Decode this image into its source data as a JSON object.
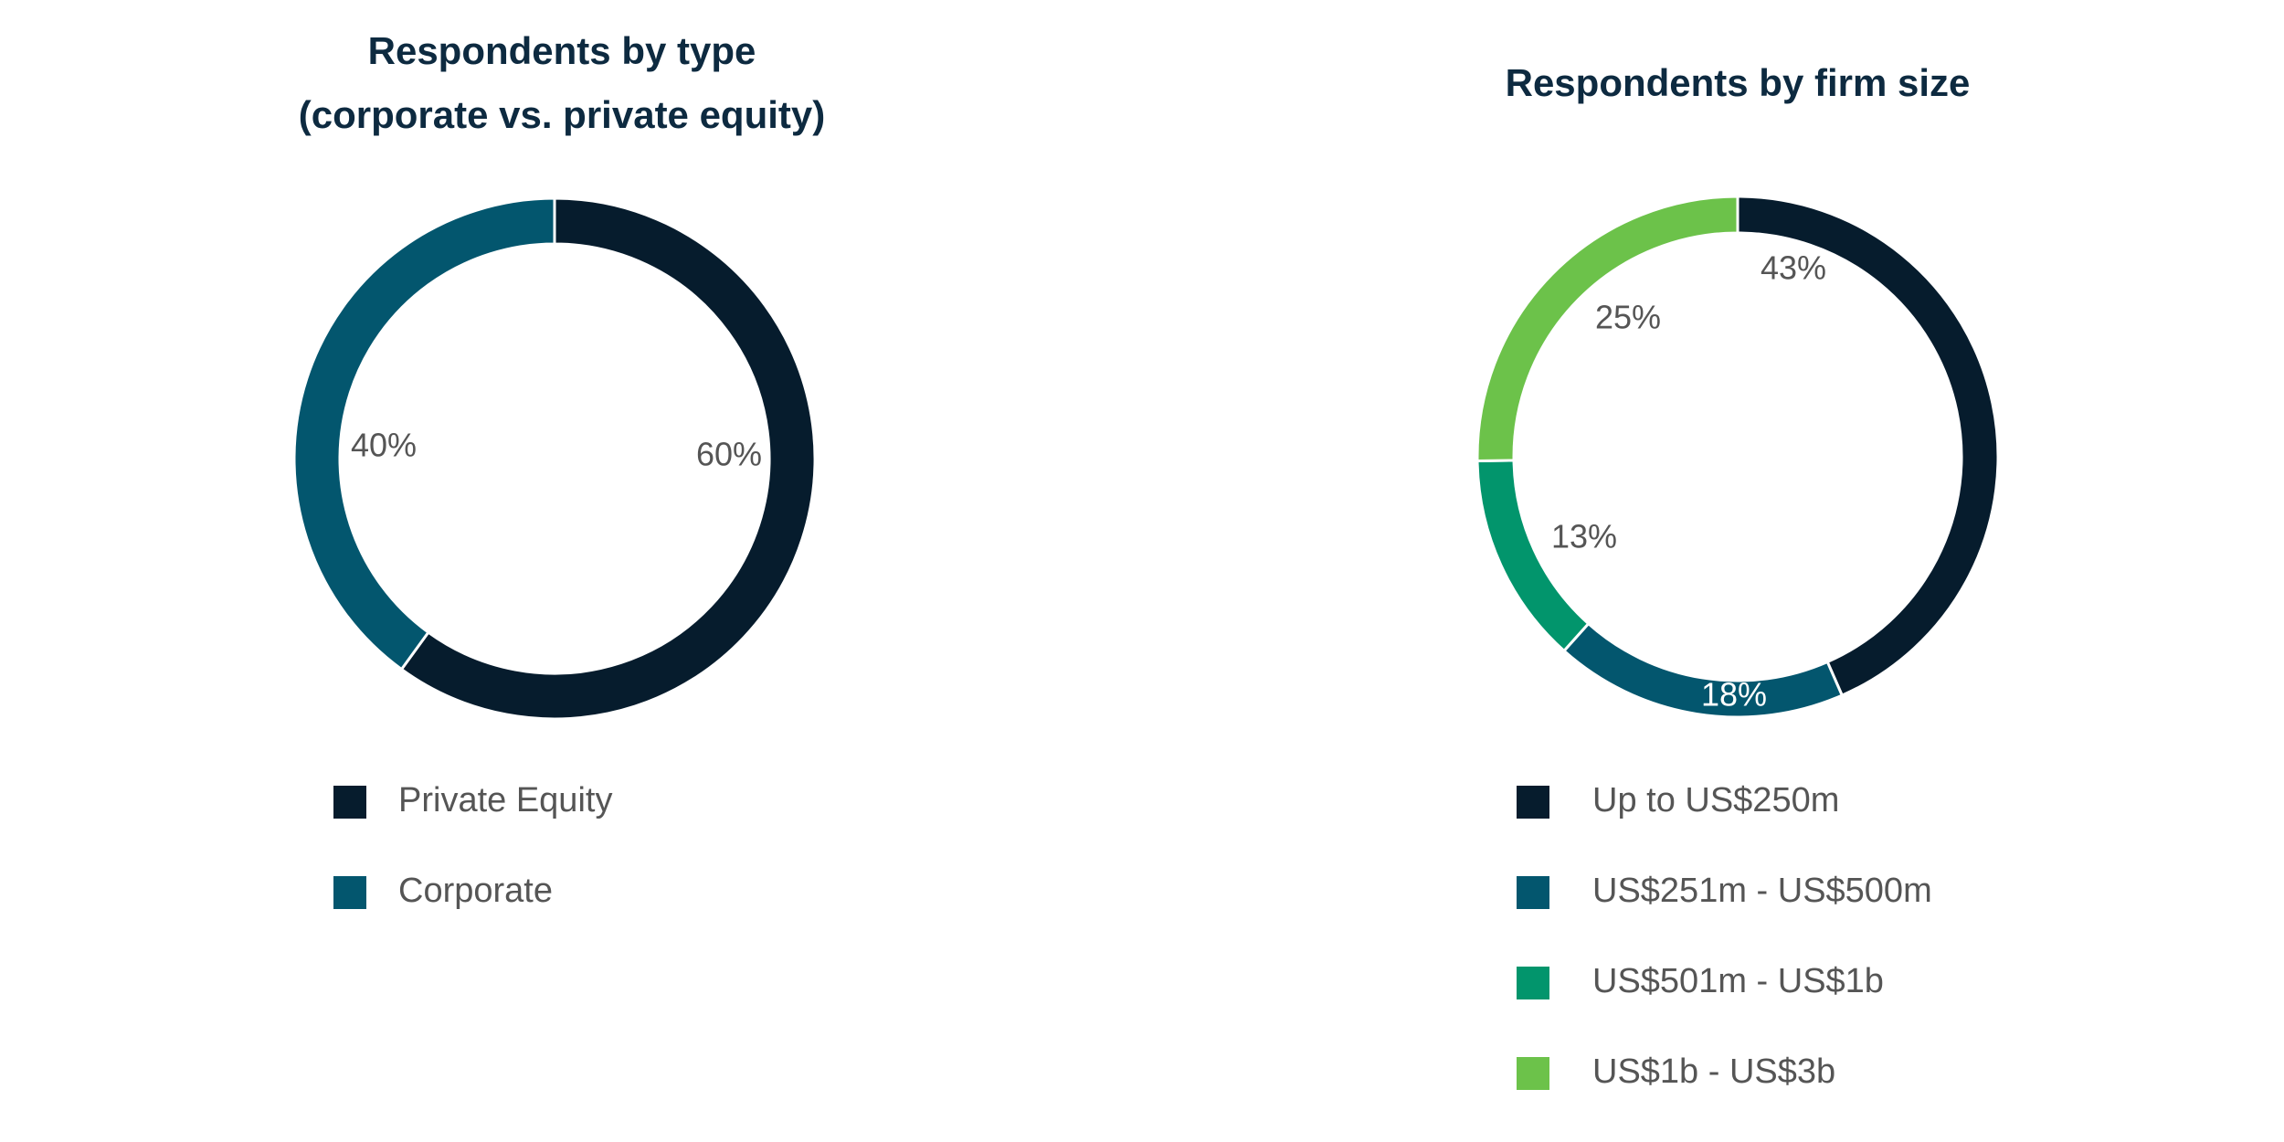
{
  "chart_data": [
    {
      "type": "pie",
      "title_lines": [
        "Respondents by type",
        "(corporate vs. private equity)"
      ],
      "slices": [
        {
          "label": "Private Equity",
          "value": 60,
          "display": "60%",
          "color": "#061c2d"
        },
        {
          "label": "Corporate",
          "value": 40,
          "display": "40%",
          "color": "#03566e"
        }
      ],
      "legend": [
        "Private Equity",
        "Corporate"
      ],
      "legend_placement": "bottom"
    },
    {
      "type": "pie",
      "title_lines": [
        "Respondents by firm size"
      ],
      "slices": [
        {
          "label": "Up to US$250m",
          "value": 43,
          "display": "43%",
          "color": "#061c2d"
        },
        {
          "label": "US$251m - US$500m",
          "value": 18,
          "display": "18%",
          "color": "#03566e"
        },
        {
          "label": "US$501m - US$1b",
          "value": 13,
          "display": "13%",
          "color": "#02956c"
        },
        {
          "label": "US$1b - US$3b",
          "value": 25,
          "display": "25%",
          "color": "#6cc24a"
        }
      ],
      "legend": [
        "Up to US$250m",
        "US$251m - US$500m",
        "US$501m - US$1b",
        "US$1b - US$3b"
      ],
      "legend_placement": "bottom"
    }
  ]
}
